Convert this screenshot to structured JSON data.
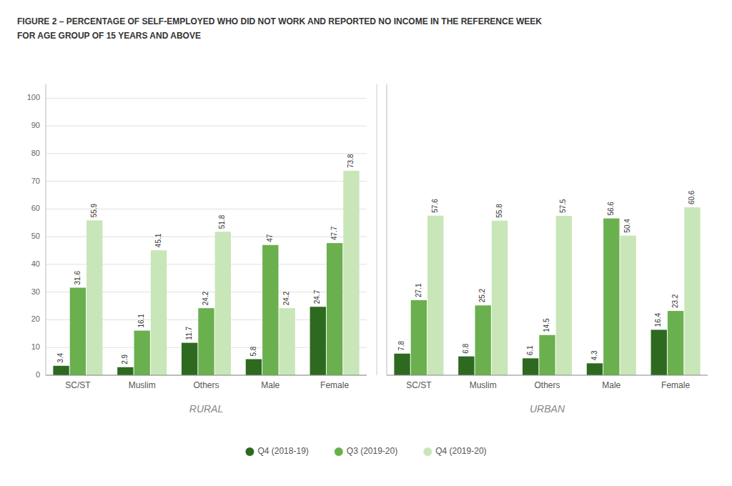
{
  "chart_data": [
    {
      "type": "bar",
      "title": "FIGURE 2 – PERCENTAGE OF SELF-EMPLOYED WHO DID NOT WORK AND REPORTED NO INCOME IN THE REFERENCE WEEK",
      "subtitle": "FOR AGE GROUP OF 15 YEARS AND ABOVE",
      "xlabel": "RURAL",
      "categories": [
        "SC/ST",
        "Muslim",
        "Others",
        "Male",
        "Female"
      ],
      "series": [
        {
          "name": "Q4 (2018-19)",
          "color": "#2d6a1f",
          "values": [
            3.4,
            2.9,
            11.7,
            5.8,
            24.7
          ]
        },
        {
          "name": "Q3 (2019-20)",
          "color": "#6ab04e",
          "values": [
            31.6,
            16.1,
            24.2,
            47.0,
            47.7
          ]
        },
        {
          "name": "Q4 (2019-20)",
          "color": "#c8e6b8",
          "values": [
            55.9,
            45.1,
            51.8,
            24.2,
            73.8
          ]
        }
      ],
      "ylim": [
        0,
        105
      ],
      "yticks": [
        0,
        10,
        20,
        30,
        40,
        50,
        60,
        70,
        80,
        90,
        100
      ],
      "grid": true,
      "data_labels": true,
      "legend": "bottom"
    },
    {
      "type": "bar",
      "xlabel": "URBAN",
      "categories": [
        "SC/ST",
        "Muslim",
        "Others",
        "Male",
        "Female"
      ],
      "series": [
        {
          "color": "#2d6a1f",
          "values": [
            7.8,
            6.8,
            6.1,
            4.3,
            16.4
          ]
        },
        {
          "color": "#6ab04e",
          "values": [
            27.1,
            25.2,
            14.5,
            56.6,
            23.2
          ]
        },
        {
          "color": "#c8e6b8",
          "values": [
            57.6,
            55.8,
            57.5,
            50.4,
            60.6
          ]
        }
      ],
      "ylim": [
        0,
        105
      ],
      "grid": false,
      "data_labels": true,
      "tick_labels": "x"
    }
  ]
}
